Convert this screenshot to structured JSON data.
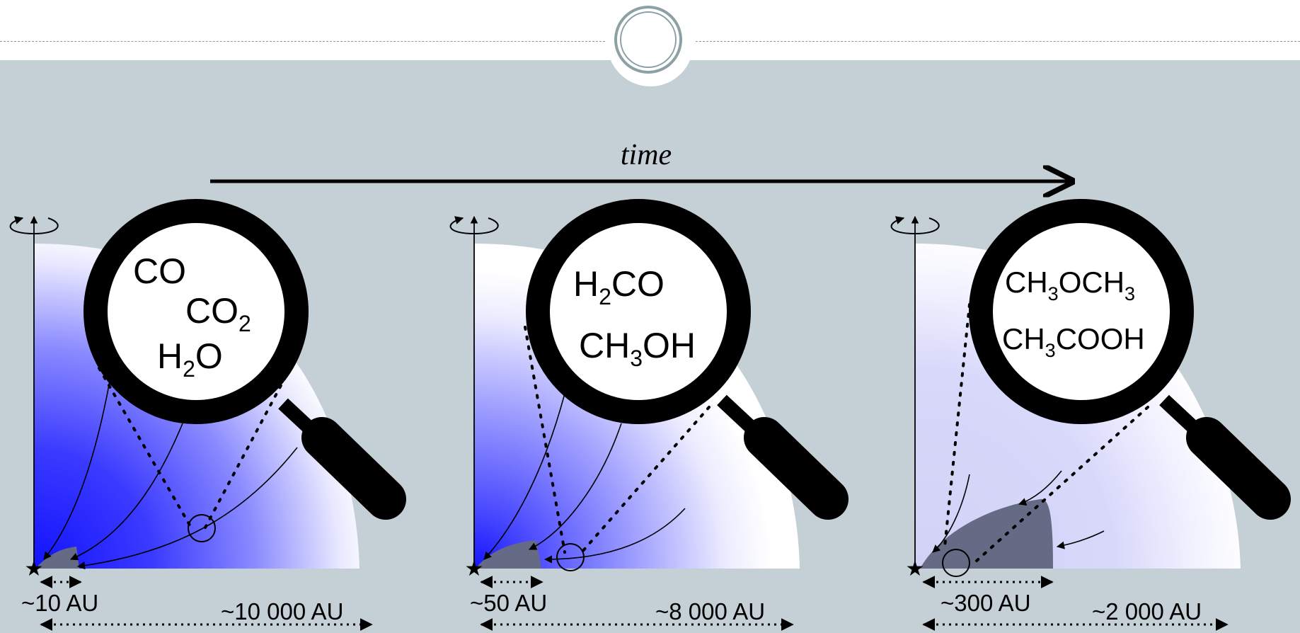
{
  "time_label": "time",
  "panels": [
    {
      "molecules": [
        {
          "base": "CO",
          "sub": "",
          "rest": ""
        },
        {
          "base": "CO",
          "sub": "2",
          "rest": ""
        },
        {
          "base": "H",
          "sub": "2",
          "rest": "O"
        }
      ],
      "inner_scale": "~10 AU",
      "outer_scale": "~10 000 AU"
    },
    {
      "molecules": [
        {
          "base": "H",
          "sub": "2",
          "rest": "CO"
        },
        {
          "base": "CH",
          "sub": "3",
          "rest": "OH"
        }
      ],
      "inner_scale": "~50 AU",
      "outer_scale": "~8 000 AU"
    },
    {
      "molecules": [
        {
          "base": "CH",
          "sub": "3",
          "rest": "OCH",
          "sub2": "3"
        },
        {
          "base": "CH",
          "sub": "3",
          "rest": "COOH"
        }
      ],
      "inner_scale": "~300 AU",
      "outer_scale": "~2 000 AU"
    }
  ],
  "colors": {
    "background": "#c5d0d6",
    "envelope_dense": "#1a1aff",
    "disk": "#656a85",
    "lens_frame": "#000000"
  }
}
